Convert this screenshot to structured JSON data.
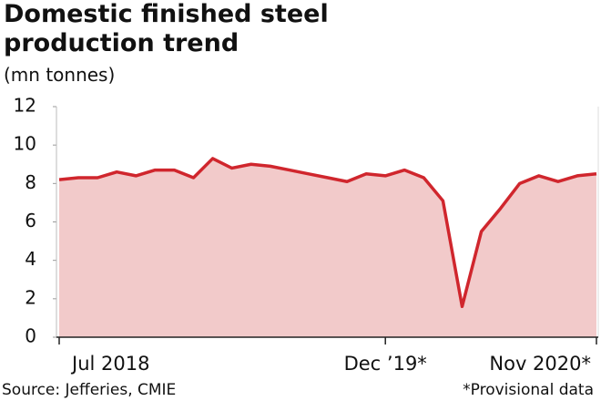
{
  "chart_data": {
    "type": "area",
    "title": "Domestic finished steel production trend",
    "subtitle": "(mn tonnes)",
    "categories": [
      "Jul 2018",
      null,
      null,
      null,
      null,
      null,
      null,
      null,
      null,
      null,
      null,
      null,
      null,
      null,
      null,
      null,
      null,
      "Dec ’19*",
      null,
      null,
      null,
      null,
      null,
      null,
      null,
      null,
      null,
      null,
      "Nov 2020*"
    ],
    "values": [
      8.2,
      8.3,
      8.3,
      8.6,
      8.4,
      8.7,
      8.7,
      8.3,
      9.3,
      8.8,
      9.0,
      8.9,
      8.7,
      8.5,
      8.3,
      8.1,
      8.5,
      8.4,
      8.7,
      8.3,
      7.1,
      1.6,
      5.5,
      6.7,
      8.0,
      8.4,
      8.1,
      8.4,
      8.5
    ],
    "color": "#d0262d",
    "fill_color": "#f2caca",
    "ylim": [
      0,
      12
    ],
    "yticks": [
      0,
      2,
      4,
      6,
      8,
      10,
      12
    ],
    "source": "Source: Jefferies, CMIE",
    "note": "*Provisional data"
  }
}
